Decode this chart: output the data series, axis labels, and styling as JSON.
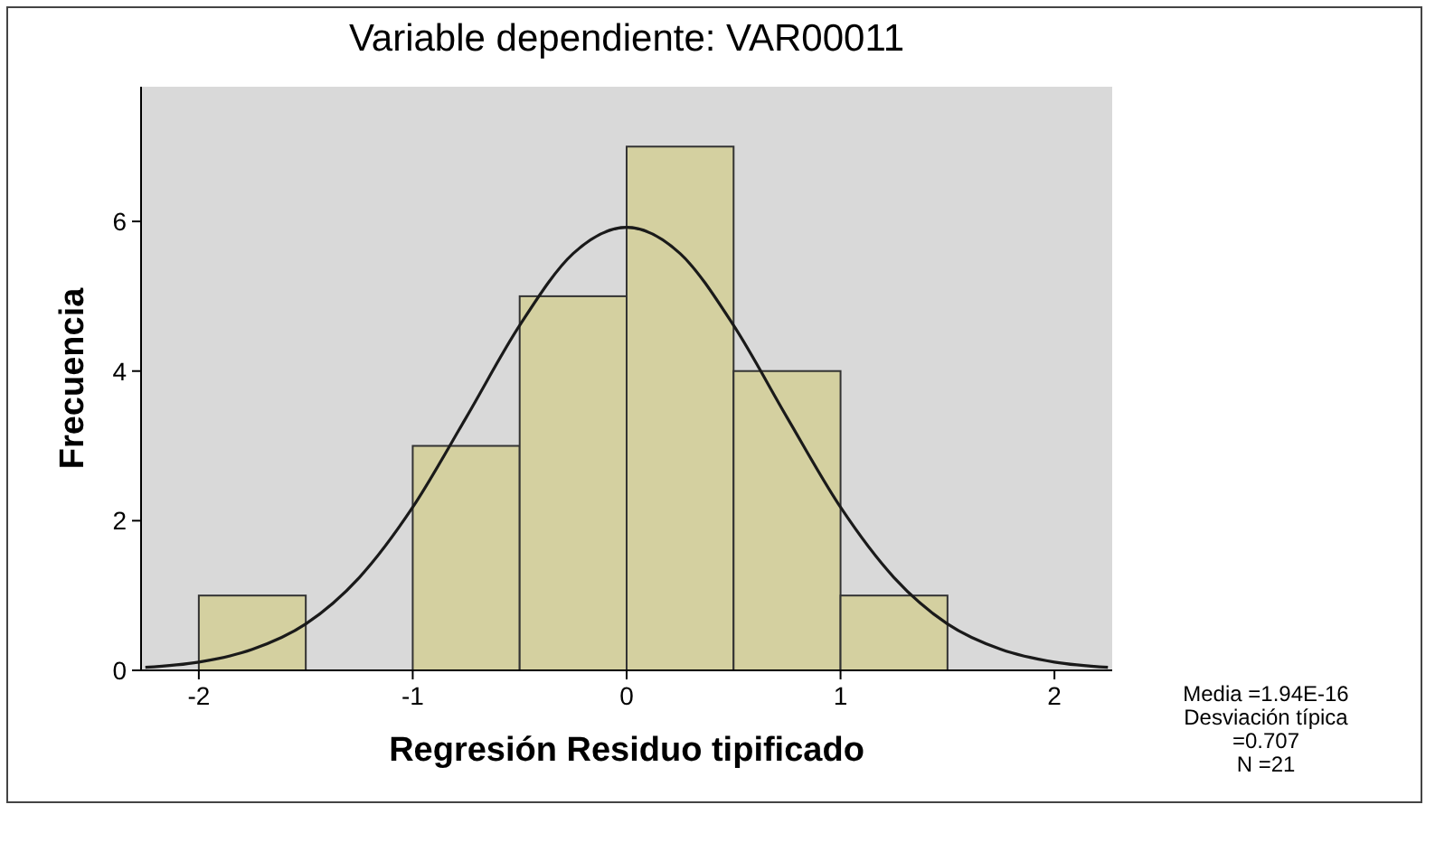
{
  "chart_data": {
    "type": "histogram",
    "title": "Variable dependiente: VAR00011",
    "xlabel": "Regresión Residuo tipificado",
    "ylabel": "Frecuencia",
    "bins": [
      -2,
      -1.5,
      -1,
      -0.5,
      0,
      0.5,
      1,
      1.5
    ],
    "values": [
      1,
      0,
      3,
      5,
      7,
      4,
      1
    ],
    "color": "#d4d0a0",
    "series": [
      {
        "type": "line",
        "color": "#1a1a1a",
        "x": [
          -2.25,
          -2,
          -1.75,
          -1.5,
          -1.25,
          -1,
          -0.75,
          -0.5,
          -0.25,
          0,
          0.25,
          0.5,
          0.75,
          1,
          1.25,
          1.5,
          1.75,
          2,
          2.25
        ],
        "values": [
          0.04,
          0.11,
          0.28,
          0.62,
          1.24,
          2.18,
          3.38,
          4.61,
          5.57,
          5.92,
          5.57,
          4.61,
          3.38,
          2.18,
          1.24,
          0.62,
          0.28,
          0.11,
          0.04
        ]
      }
    ],
    "xlim": [
      -2.27,
      2.27
    ],
    "xticks": [
      -2,
      -1,
      0,
      1,
      2
    ],
    "ylim": [
      0,
      7.8
    ],
    "yticks": [
      0,
      2,
      4,
      6
    ],
    "grid": false,
    "annotations": [
      "Media =1.94E-16",
      "Desviación típica =0.707",
      "N =21"
    ]
  }
}
